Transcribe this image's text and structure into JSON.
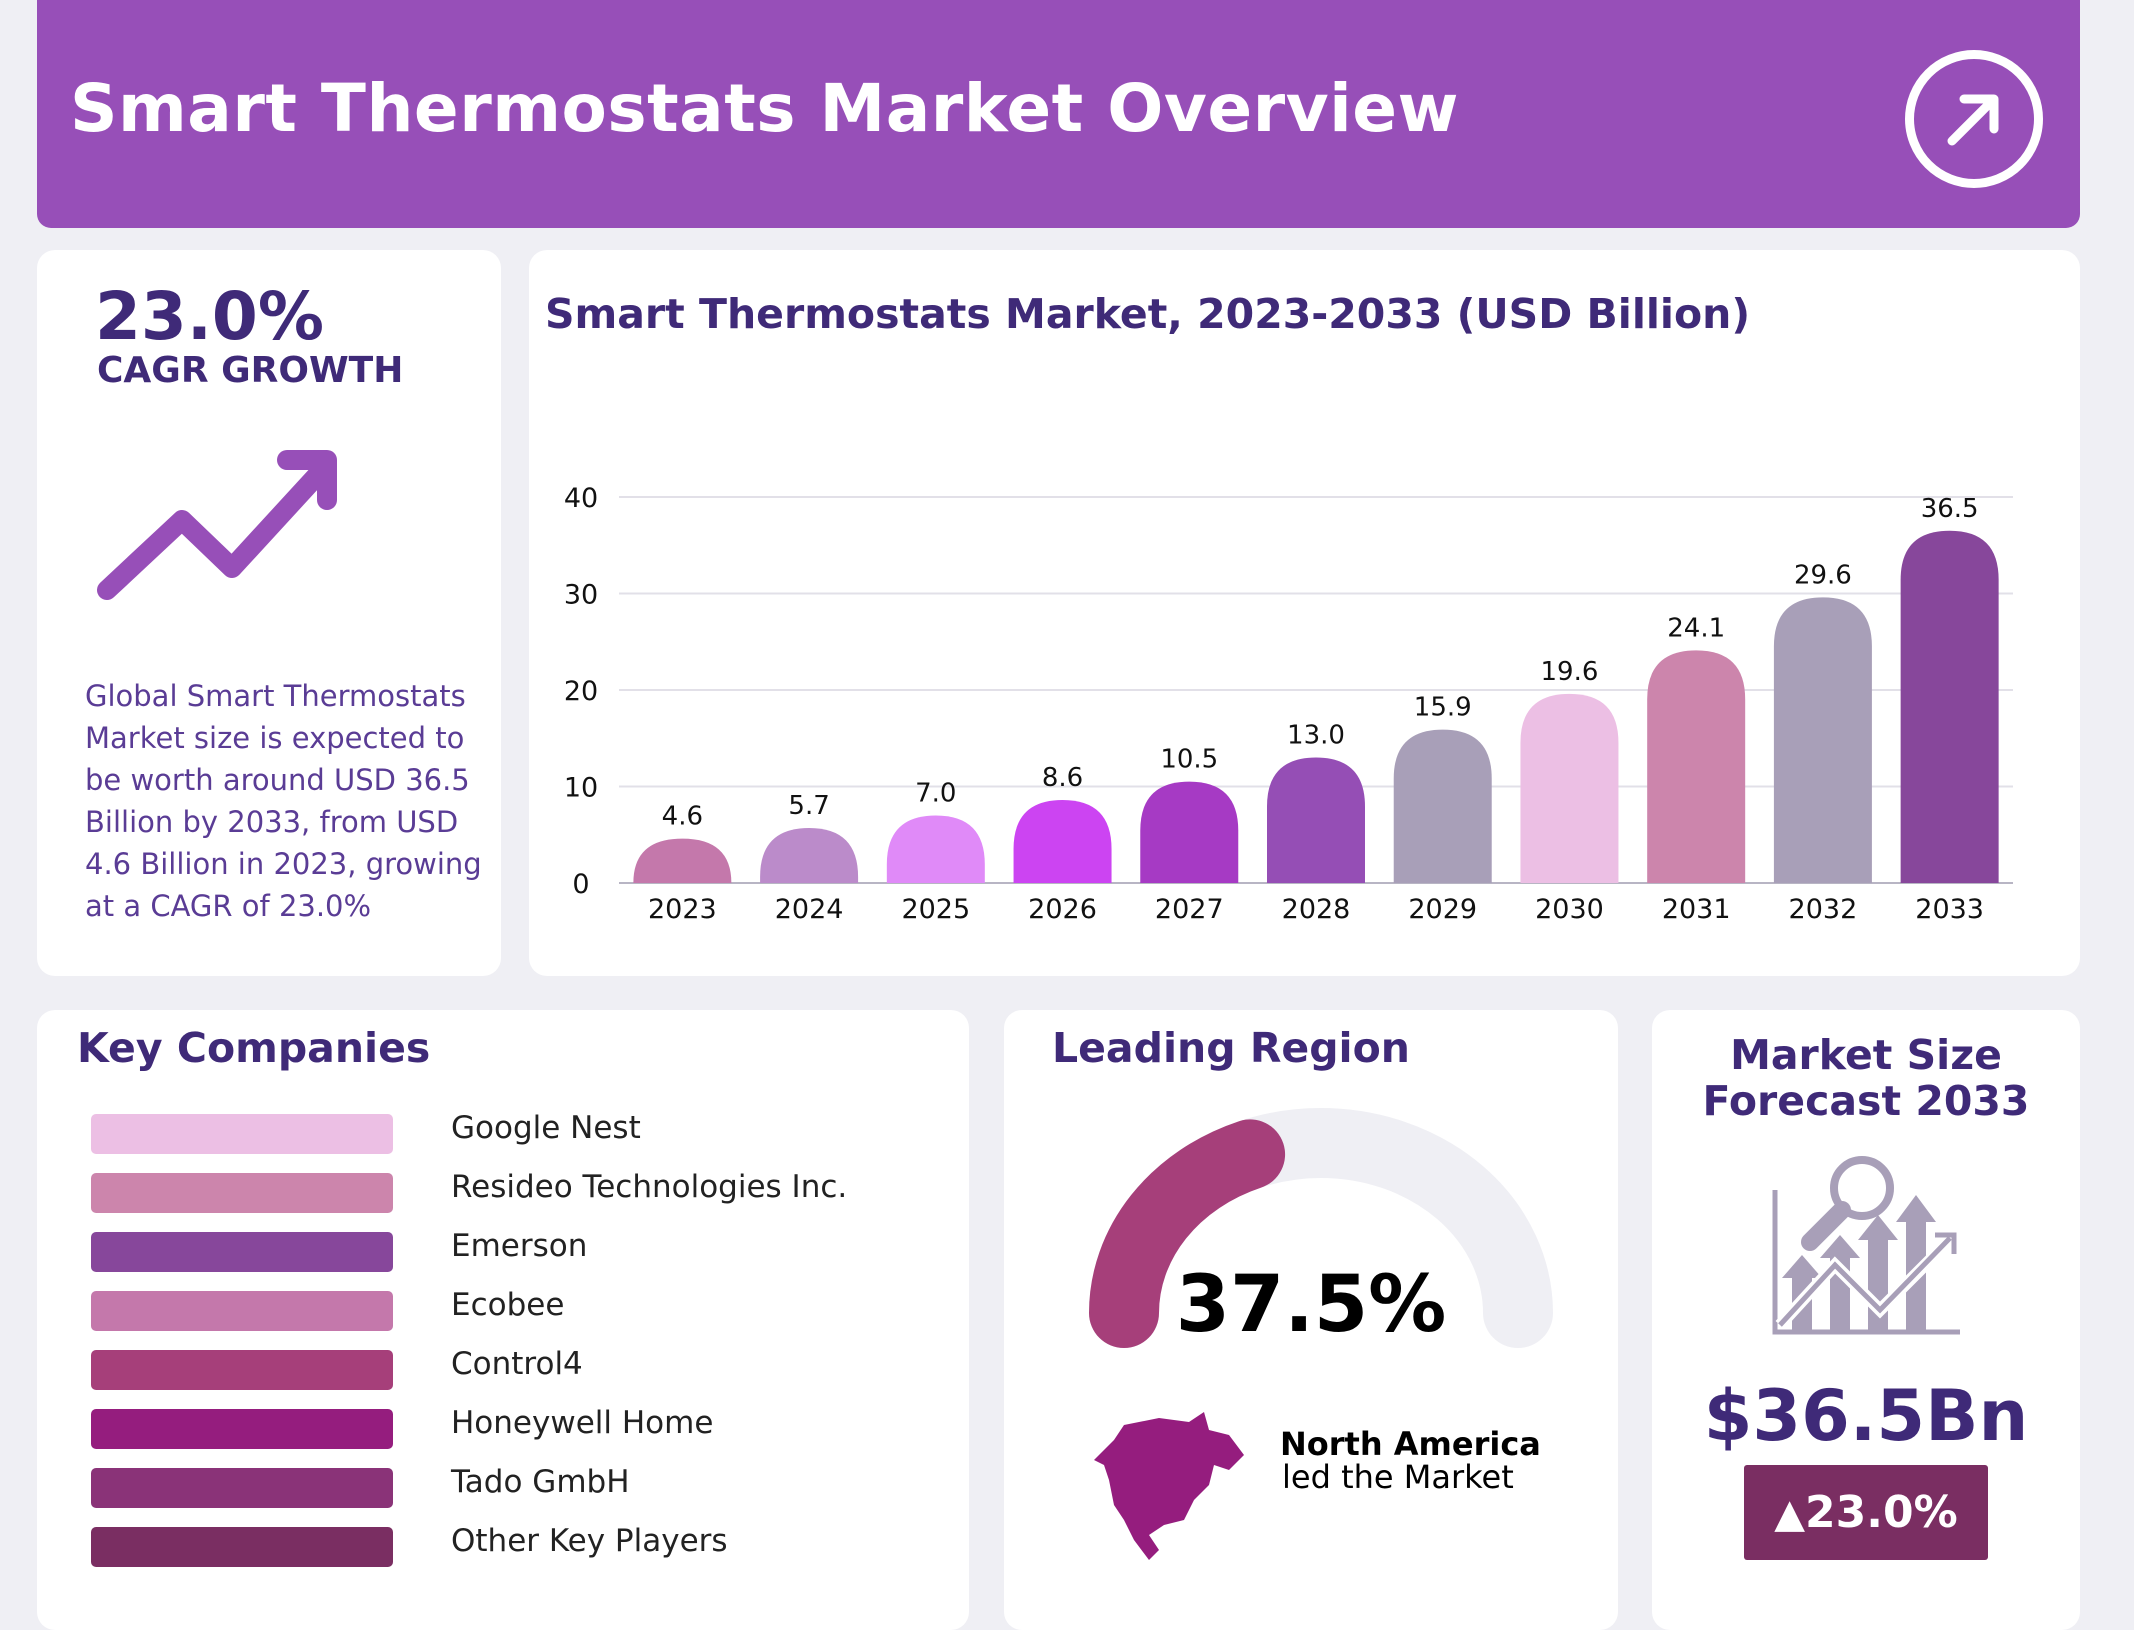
{
  "header": {
    "title": "Smart Thermostats Market Overview",
    "action_icon": "arrow-up-right-circle-icon"
  },
  "cagr": {
    "value": "23.0%",
    "label": "CAGR GROWTH",
    "icon": "trend-up-arrow-icon",
    "description": "Global Smart Thermostats Market size is expected to be worth around USD 36.5 Billion by 2033, from USD 4.6 Billion in 2023, growing at a CAGR of 23.0%"
  },
  "chart_data": {
    "type": "bar",
    "title": "Smart Thermostats Market, 2023-2033 (USD Billion)",
    "categories": [
      "2023",
      "2024",
      "2025",
      "2026",
      "2027",
      "2028",
      "2029",
      "2030",
      "2031",
      "2032",
      "2033"
    ],
    "values": [
      4.6,
      5.7,
      7.0,
      8.6,
      10.5,
      13.0,
      15.9,
      19.6,
      24.1,
      29.6,
      36.5
    ],
    "value_labels": [
      "4.6",
      "5.7",
      "7.0",
      "8.6",
      "10.5",
      "13.0",
      "15.9",
      "19.6",
      "24.1",
      "29.6",
      "36.5"
    ],
    "colors": [
      "#c478ab",
      "#bb8bca",
      "#e08af8",
      "#cc44f2",
      "#a63ac4",
      "#954eb5",
      "#a89fb8",
      "#ecbfe4",
      "#cc85ac",
      "#a89fb8",
      "#87479b"
    ],
    "yticks": [
      "0",
      "10",
      "20",
      "30",
      "40"
    ],
    "ylim": [
      0,
      40
    ],
    "grid": true,
    "xlabel": "",
    "ylabel": ""
  },
  "companies": {
    "title": "Key Companies",
    "items": [
      {
        "name": "Google Nest",
        "color": "#ecbfe4"
      },
      {
        "name": "Resideo Technologies Inc.",
        "color": "#cc85ac"
      },
      {
        "name": "Emerson",
        "color": "#87479b"
      },
      {
        "name": "Ecobee",
        "color": "#c478ab"
      },
      {
        "name": "Control4",
        "color": "#a63f7a"
      },
      {
        "name": "Honeywell Home",
        "color": "#951d7e"
      },
      {
        "name": "Tado GmbH",
        "color": "#8a3378"
      },
      {
        "name": "Other Key Players",
        "color": "#7a2e62"
      }
    ]
  },
  "region": {
    "title": "Leading Region",
    "share": "37.5%",
    "share_fraction": 0.375,
    "region_name": "North America",
    "subtitle": "led the Market",
    "gauge_color": "#a63f7a",
    "map_color": "#951d7e",
    "icon": "north-america-map-icon"
  },
  "forecast": {
    "title_line1": "Market Size",
    "title_line2": "Forecast 2033",
    "value": "$36.5Bn",
    "growth": "23.0%",
    "growth_icon": "triangle-up-icon",
    "icon": "growth-chart-magnifier-icon",
    "badge_color": "#7a2e62"
  }
}
